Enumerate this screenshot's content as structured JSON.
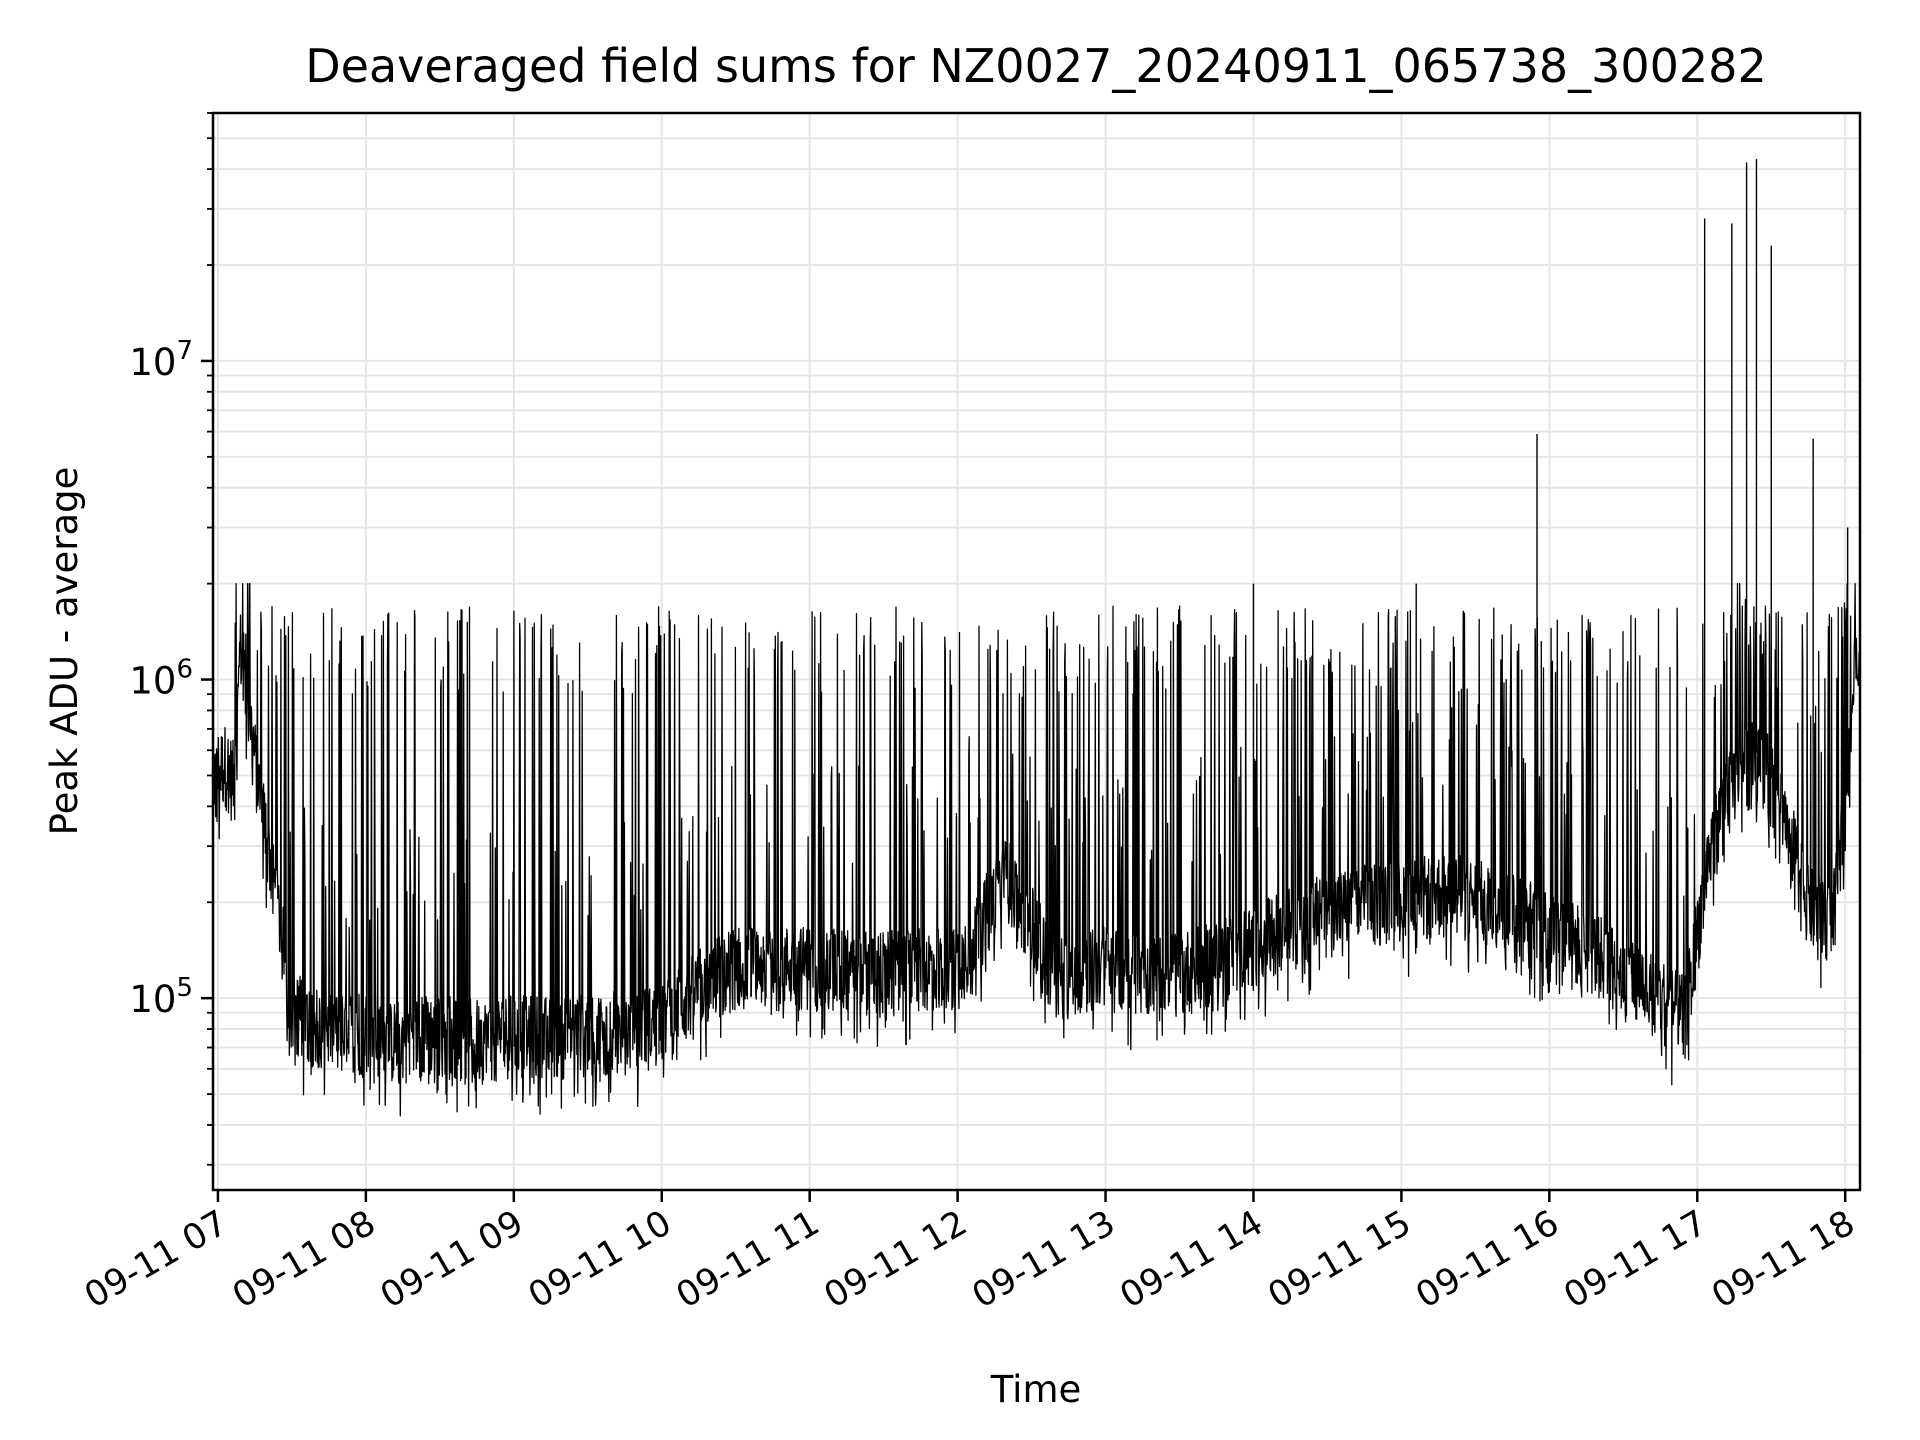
{
  "chart_data": {
    "type": "line",
    "title": "Deaveraged field sums for NZ0027_20240911_065738_300282",
    "xlabel": "Time",
    "ylabel": "Peak ADU - average",
    "x_scale": "time",
    "y_scale": "log",
    "xlim": [
      "2024-09-11 06:58",
      "2024-09-11 18:06"
    ],
    "ylim": [
      25000,
      60000000
    ],
    "x_ticks": [
      {
        "value": "2024-09-11 07:00",
        "label": "09-11 07"
      },
      {
        "value": "2024-09-11 08:00",
        "label": "09-11 08"
      },
      {
        "value": "2024-09-11 09:00",
        "label": "09-11 09"
      },
      {
        "value": "2024-09-11 10:00",
        "label": "09-11 10"
      },
      {
        "value": "2024-09-11 11:00",
        "label": "09-11 11"
      },
      {
        "value": "2024-09-11 12:00",
        "label": "09-11 12"
      },
      {
        "value": "2024-09-11 13:00",
        "label": "09-11 13"
      },
      {
        "value": "2024-09-11 14:00",
        "label": "09-11 14"
      },
      {
        "value": "2024-09-11 15:00",
        "label": "09-11 15"
      },
      {
        "value": "2024-09-11 16:00",
        "label": "09-11 16"
      },
      {
        "value": "2024-09-11 17:00",
        "label": "09-11 17"
      },
      {
        "value": "2024-09-11 18:00",
        "label": "09-11 18"
      }
    ],
    "y_ticks": [
      {
        "value": 100000,
        "base": "10",
        "exp": "5"
      },
      {
        "value": 1000000,
        "base": "10",
        "exp": "6"
      },
      {
        "value": 10000000,
        "base": "10",
        "exp": "7"
      }
    ],
    "grid": true,
    "line_color": "#000000",
    "grid_color": "#e5e5e5",
    "series": [
      {
        "values": [
          [
            "2024-09-11 06:58",
            500000
          ],
          [
            "2024-09-11 07:03",
            560000
          ],
          [
            "2024-09-11 07:07",
            480000
          ],
          [
            "2024-09-11 07:09",
            1300000
          ],
          [
            "2024-09-11 07:12",
            900000
          ],
          [
            "2024-09-11 07:16",
            500000
          ],
          [
            "2024-09-11 07:20",
            320000
          ],
          [
            "2024-09-11 07:25",
            180000
          ],
          [
            "2024-09-11 07:30",
            95000
          ],
          [
            "2024-09-11 07:40",
            85000
          ],
          [
            "2024-09-11 07:50",
            80000
          ],
          [
            "2024-09-11 08:00",
            82000
          ],
          [
            "2024-09-11 08:10",
            75000
          ],
          [
            "2024-09-11 08:20",
            78000
          ],
          [
            "2024-09-11 08:30",
            80000
          ],
          [
            "2024-09-11 08:45",
            76000
          ],
          [
            "2024-09-11 09:00",
            80000
          ],
          [
            "2024-09-11 09:15",
            78000
          ],
          [
            "2024-09-11 09:30",
            80000
          ],
          [
            "2024-09-11 09:45",
            82000
          ],
          [
            "2024-09-11 10:00",
            85000
          ],
          [
            "2024-09-11 10:15",
            110000
          ],
          [
            "2024-09-11 10:30",
            130000
          ],
          [
            "2024-09-11 11:00",
            130000
          ],
          [
            "2024-09-11 11:30",
            125000
          ],
          [
            "2024-09-11 12:00",
            130000
          ],
          [
            "2024-09-11 12:20",
            250000
          ],
          [
            "2024-09-11 12:40",
            120000
          ],
          [
            "2024-09-11 13:00",
            130000
          ],
          [
            "2024-09-11 13:20",
            120000
          ],
          [
            "2024-09-11 13:40",
            130000
          ],
          [
            "2024-09-11 14:00",
            150000
          ],
          [
            "2024-09-11 14:20",
            180000
          ],
          [
            "2024-09-11 14:40",
            200000
          ],
          [
            "2024-09-11 15:00",
            210000
          ],
          [
            "2024-09-11 15:20",
            220000
          ],
          [
            "2024-09-11 15:40",
            200000
          ],
          [
            "2024-09-11 16:00",
            170000
          ],
          [
            "2024-09-11 16:20",
            140000
          ],
          [
            "2024-09-11 16:40",
            110000
          ],
          [
            "2024-09-11 16:55",
            90000
          ],
          [
            "2024-09-11 17:05",
            300000
          ],
          [
            "2024-09-11 17:15",
            500000
          ],
          [
            "2024-09-11 17:25",
            600000
          ],
          [
            "2024-09-11 17:35",
            400000
          ],
          [
            "2024-09-11 17:45",
            200000
          ],
          [
            "2024-09-11 17:55",
            180000
          ],
          [
            "2024-09-11 18:00",
            450000
          ],
          [
            "2024-09-11 18:04",
            1100000
          ],
          [
            "2024-09-11 18:06",
            1000000
          ]
        ]
      }
    ],
    "spikes": [
      {
        "x": "2024-09-11 14:00",
        "y": 2000000
      },
      {
        "x": "2024-09-11 15:06",
        "y": 2000000
      },
      {
        "x": "2024-09-11 15:55",
        "y": 5900000
      },
      {
        "x": "2024-09-11 17:03",
        "y": 28000000
      },
      {
        "x": "2024-09-11 17:14",
        "y": 27000000
      },
      {
        "x": "2024-09-11 17:20",
        "y": 42000000
      },
      {
        "x": "2024-09-11 17:24",
        "y": 43000000
      },
      {
        "x": "2024-09-11 17:30",
        "y": 23000000
      },
      {
        "x": "2024-09-11 17:47",
        "y": 5700000
      },
      {
        "x": "2024-09-11 18:01",
        "y": 3000000
      }
    ]
  }
}
